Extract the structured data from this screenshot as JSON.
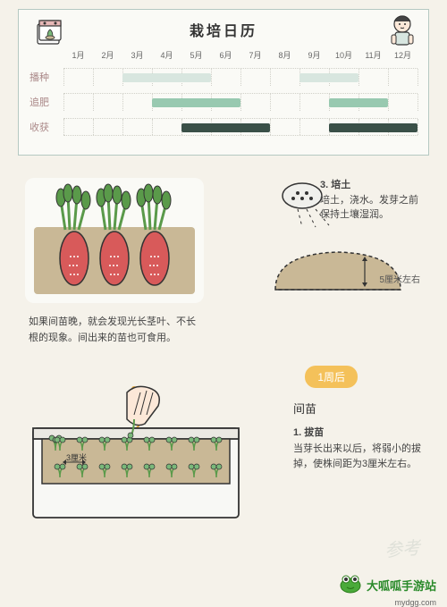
{
  "calendar": {
    "title": "栽培日历",
    "months": [
      "1月",
      "2月",
      "3月",
      "4月",
      "5月",
      "6月",
      "7月",
      "8月",
      "9月",
      "10月",
      "11月",
      "12月"
    ],
    "rows": [
      {
        "label": "播种",
        "bars": [
          {
            "start": 3,
            "end": 5,
            "color": "#d8e6df"
          },
          {
            "start": 9,
            "end": 10,
            "color": "#d8e6df"
          }
        ]
      },
      {
        "label": "追肥",
        "bars": [
          {
            "start": 4,
            "end": 6,
            "color": "#98c9b0"
          },
          {
            "start": 10,
            "end": 11,
            "color": "#98c9b0"
          }
        ]
      },
      {
        "label": "收获",
        "bars": [
          {
            "start": 5,
            "end": 7,
            "color": "#3a5048"
          },
          {
            "start": 10,
            "end": 12,
            "color": "#3a5048"
          }
        ]
      }
    ]
  },
  "soilStep": {
    "num": "3. 培土",
    "text": "培土，浇水。发芽之前保持土壤湿润。"
  },
  "depthLabel": "5厘米左右",
  "carrotCaption": "如果间苗晚，就会发现光长茎叶、不长根的现象。间出来的苗也可食用。",
  "timeBadge": "1周后",
  "thinning": {
    "title": "间苗",
    "stepNum": "1. 拔苗",
    "stepText": "当芽长出来以后，将弱小的拔掉，使株间距为3厘米左右。"
  },
  "planterLabel": "3厘米",
  "logo": {
    "brand": "大呱呱手游站",
    "url": "mydgg.com"
  },
  "watermark": "参考",
  "colors": {
    "pageBg": "#f5f2ea",
    "calBorder": "#b5c9c2",
    "carrotRed": "#d85a5a",
    "carrotGreen": "#5a9a4a",
    "soilBrown": "#c9b896",
    "planterWhite": "#f8f8f5",
    "badgeOrange": "#f4c15a",
    "logoGreen": "#2a8a2a"
  }
}
